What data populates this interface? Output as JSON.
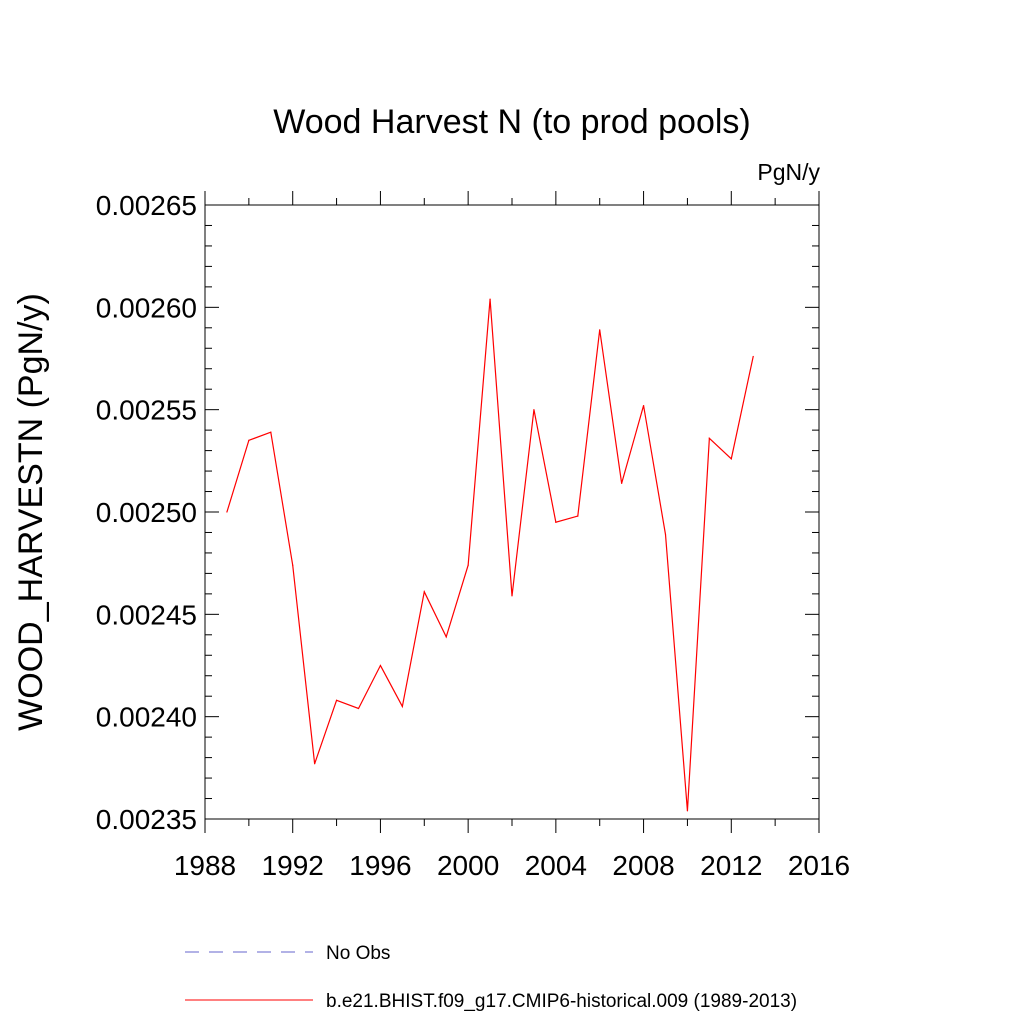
{
  "chart_data": {
    "type": "line",
    "title": "Wood Harvest N (to prod pools)",
    "units": "PgN/y",
    "ylabel": "WOOD_HARVESTN  (PgN/y)",
    "xlabel": "",
    "xlim": [
      1988,
      2016
    ],
    "ylim": [
      0.00235,
      0.00265
    ],
    "x_ticks": [
      1988,
      1992,
      1996,
      2000,
      2004,
      2008,
      2012,
      2016
    ],
    "x_tick_labels": [
      "1988",
      "1992",
      "1996",
      "2000",
      "2004",
      "2008",
      "2012",
      "2016"
    ],
    "y_ticks": [
      0.00235,
      0.0024,
      0.00245,
      0.0025,
      0.00255,
      0.0026,
      0.00265
    ],
    "y_tick_labels": [
      "0.00235",
      "0.00240",
      "0.00245",
      "0.00250",
      "0.00255",
      "0.00260",
      "0.00265"
    ],
    "grid": false,
    "legend_position": "bottom",
    "series": [
      {
        "name": "No Obs",
        "color": "#6666cc",
        "style": "dashed",
        "x": [],
        "values": []
      },
      {
        "name": "b.e21.BHIST.f09_g17.CMIP6-historical.009 (1989-2013)",
        "color": "#ff0000",
        "style": "solid",
        "x": [
          1989,
          1990,
          1991,
          1992,
          1993,
          1994,
          1995,
          1996,
          1997,
          1998,
          1999,
          2000,
          2001,
          2002,
          2003,
          2004,
          2005,
          2006,
          2007,
          2008,
          2009,
          2010,
          2011,
          2012,
          2013
        ],
        "values": [
          0.0025,
          0.002535,
          0.002539,
          0.002474,
          0.002377,
          0.002408,
          0.002404,
          0.002425,
          0.002405,
          0.002461,
          0.002439,
          0.002474,
          0.002604,
          0.002459,
          0.00255,
          0.002495,
          0.002498,
          0.002589,
          0.002514,
          0.002552,
          0.002489,
          0.002354,
          0.002536,
          0.002526,
          0.002576
        ]
      }
    ]
  }
}
